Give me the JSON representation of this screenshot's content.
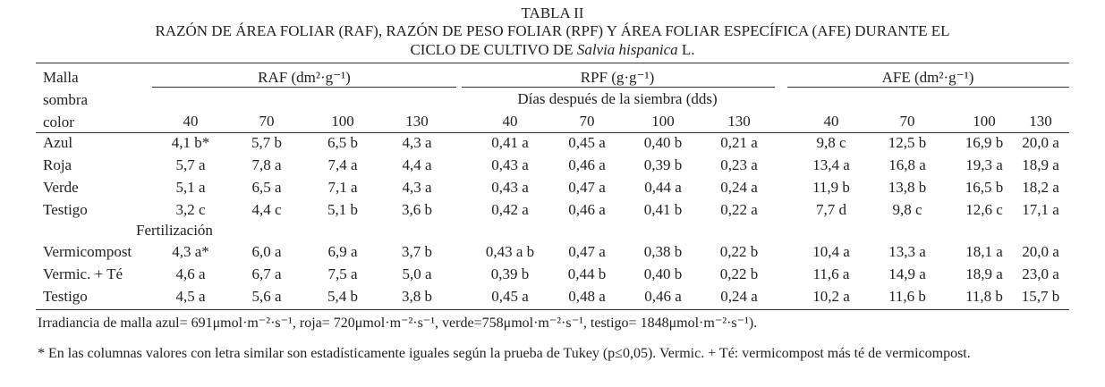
{
  "title": "TABLA II",
  "subtitle": {
    "line1": "RAZÓN DE ÁREA FOLIAR (RAF), RAZÓN DE PESO FOLIAR (RPF) Y ÁREA FOLIAR ESPECÍFICA (AFE) DURANTE EL",
    "line2_prefix": "CICLO DE CULTIVO DE",
    "line2_species": "Salvia hispanica",
    "line2_suffix": "L."
  },
  "table": {
    "stub_header": [
      "Malla",
      "sombra",
      "color"
    ],
    "groups": [
      "RAF (dm²·g⁻¹)",
      "RPF (g·g⁻¹)",
      "AFE (dm²·g⁻¹)"
    ],
    "spanner": "Días después de la siembra (dds)",
    "columns": [
      "40",
      "70",
      "100",
      "130",
      "40",
      "70",
      "100",
      "130",
      "40",
      "70",
      "100",
      "130"
    ],
    "rows_color": [
      {
        "label": "Azul",
        "cells": [
          "4,1 b*",
          "5,7 b",
          "6,5 b",
          "4,3 a",
          "0,41 a",
          "0,45 a",
          "0,40 b",
          "0,21 a",
          "9,8 c",
          "12,5 b",
          "16,9 b",
          "20,0 a"
        ]
      },
      {
        "label": "Roja",
        "cells": [
          "5,7 a",
          "7,8 a",
          "7,4 a",
          "4,4 a",
          "0,43 a",
          "0,46 a",
          "0,39 b",
          "0,23 a",
          "13,4 a",
          "16,8 a",
          "19,3 a",
          "18,9 a"
        ]
      },
      {
        "label": "Verde",
        "cells": [
          "5,1 a",
          "6,5 a",
          "7,1 a",
          "4,3 a",
          "0,43 a",
          "0,47 a",
          "0,44 a",
          "0,24 a",
          "11,9 b",
          "13,8 b",
          "16,5 b",
          "18,2 a"
        ]
      },
      {
        "label": "Testigo",
        "cells": [
          "3,2 c",
          "4,4 c",
          "5,1 b",
          "3,6 b",
          "0,42 a",
          "0,46 a",
          "0,41 b",
          "0,22 a",
          "7,7 d",
          "9,8 c",
          "12,6 c",
          "17,1 a"
        ]
      }
    ],
    "section_label": "Fertilización",
    "rows_fertilization": [
      {
        "label": "Vermicompost",
        "cells": [
          "4,3 a*",
          "6,0 a",
          "6,9 a",
          "3,7 b",
          "0,43 a b",
          "0,47 a",
          "0,38 b",
          "0,22 b",
          "10,4 a",
          "13,3 a",
          "18,1 a",
          "20,0 a"
        ]
      },
      {
        "label": "Vermic. + Té",
        "cells": [
          "4,6 a",
          "6,7 a",
          "7,5 a",
          "5,0 a",
          "0,39 b",
          "0,44 b",
          "0,40 b",
          "0,22 b",
          "11,6 a",
          "14,9 a",
          "18,9 a",
          "23,0 a"
        ]
      },
      {
        "label": "Testigo",
        "cells": [
          "4,5 a",
          "5,6 a",
          "5,4 b",
          "3,8 b",
          "0,45 a",
          "0,48 a",
          "0,46 a",
          "0,24 a",
          "10,2 a",
          "11,6 b",
          "11,8 b",
          "15,7 b"
        ]
      }
    ]
  },
  "notes": [
    "Irradiancia de malla azul= 691μmol·m⁻²·s⁻¹, roja= 720μmol·m⁻²·s⁻¹, verde=758μmol·m⁻²·s⁻¹, testigo= 1848μmol·m⁻²·s⁻¹).",
    "* En las columnas valores con letra similar son estadísticamente iguales según la prueba de Tukey (p≤0,05). Vermic. + Té: vermicompost más té de vermicompost."
  ]
}
